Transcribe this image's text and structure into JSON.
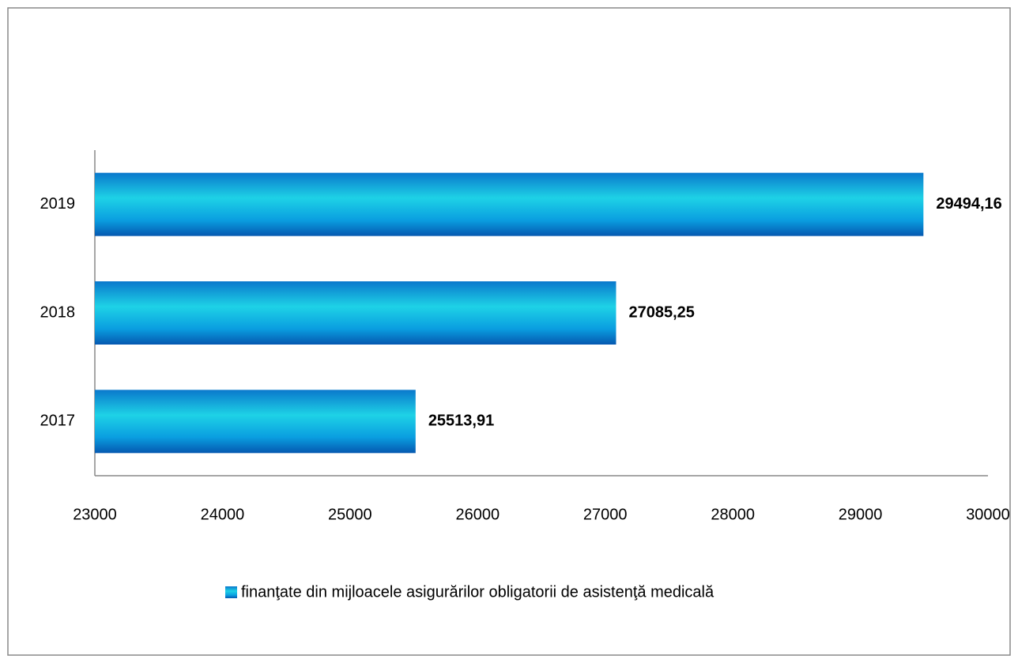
{
  "chart_data": {
    "type": "hbar",
    "categories": [
      "2017",
      "2018",
      "2019"
    ],
    "series": [
      {
        "name": "finanţate din mijloacele asigurărilor obligatorii de asistenţă medicală",
        "color": "#1ed2e6",
        "values": [
          25513.91,
          27085.25,
          29494.16
        ],
        "value_labels": [
          "25513,91",
          "27085,25",
          "29494,16"
        ]
      }
    ],
    "xlim": [
      23000,
      30000
    ],
    "xticks": [
      23000,
      24000,
      25000,
      26000,
      27000,
      28000,
      29000,
      30000
    ],
    "grid": false,
    "legend": "bottom"
  }
}
